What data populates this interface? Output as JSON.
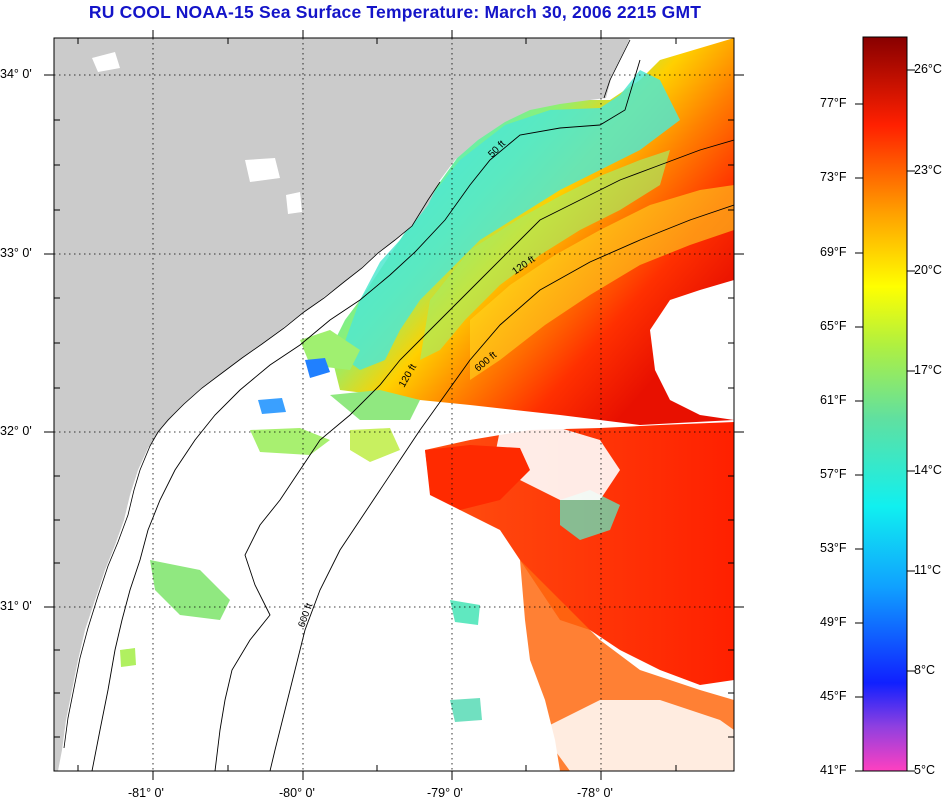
{
  "title": "RU COOL  NOAA-15  Sea Surface Temperature:  March 30, 2006 2215 GMT",
  "map": {
    "lat_labels": [
      "34° 0'",
      "33° 0'",
      "32° 0'",
      "31° 0'"
    ],
    "lon_labels": [
      "-81° 0'",
      "-80° 0'",
      "-79° 0'",
      "-78° 0'"
    ],
    "contour_labels": [
      "50 ft",
      "120 ft",
      "600 ft"
    ],
    "land_color": "#cbcbcb",
    "nodata_color": "#ffffff"
  },
  "colorbar": {
    "fahrenheit_labels": [
      "77°F",
      "73°F",
      "69°F",
      "65°F",
      "61°F",
      "57°F",
      "53°F",
      "49°F",
      "45°F",
      "41°F"
    ],
    "celsius_labels": [
      "26°C",
      "23°C",
      "20°C",
      "17°C",
      "14°C",
      "11°C",
      "8°C",
      "5°C"
    ]
  }
}
